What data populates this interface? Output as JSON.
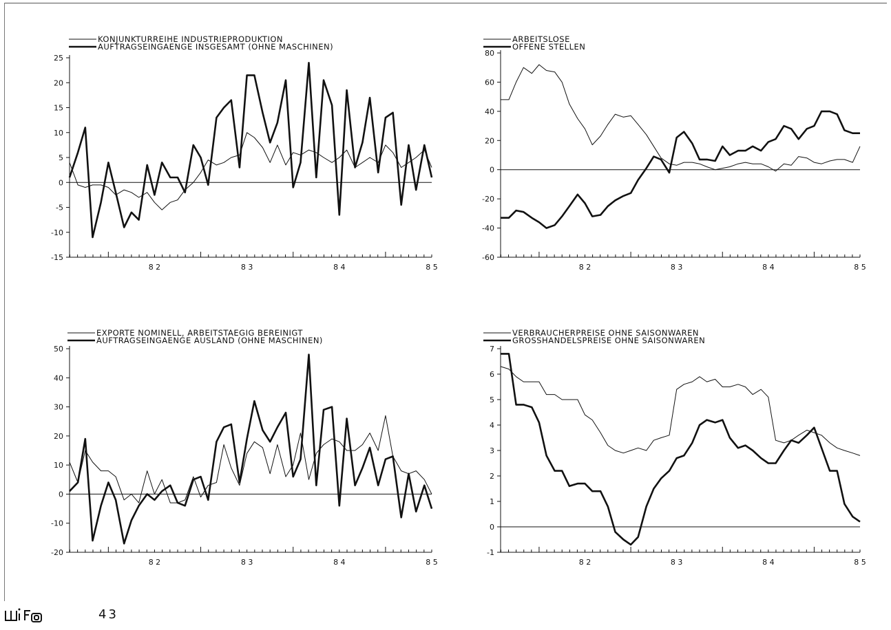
{
  "page": {
    "number": "43",
    "logo_text": "wifo"
  },
  "chart_data": [
    {
      "type": "line",
      "id": "c1",
      "title": "",
      "xlabel": "",
      "ylabel": "",
      "ylim": [
        -15,
        25
      ],
      "yticks": [
        25,
        20,
        15,
        10,
        5,
        0,
        -5,
        -10,
        -15
      ],
      "ytick_labels": [
        "25",
        "20",
        "15",
        "10",
        "5",
        "0",
        "-5",
        "-10",
        "-15"
      ],
      "xlim": [
        1981.58,
        1985.5
      ],
      "xtick_labels": [
        "82",
        "83",
        "84",
        "85"
      ],
      "zero_line": true,
      "legend": "top-left",
      "series": [
        {
          "name": "KONJUNKTURREIHE INDUSTRIEPRODUKTION",
          "weight": "thin",
          "x": [
            1981.58,
            1981.67,
            1981.75,
            1981.83,
            1981.92,
            1982.0,
            1982.08,
            1982.17,
            1982.25,
            1982.33,
            1982.42,
            1982.5,
            1982.58,
            1982.67,
            1982.75,
            1982.83,
            1982.92,
            1983.0,
            1983.08,
            1983.17,
            1983.25,
            1983.33,
            1983.42,
            1983.5,
            1983.58,
            1983.67,
            1983.75,
            1983.83,
            1983.92,
            1984.0,
            1984.08,
            1984.17,
            1984.25,
            1984.33,
            1984.42,
            1984.5,
            1984.58,
            1984.67,
            1984.75,
            1984.83,
            1984.92,
            1985.0,
            1985.08,
            1985.17,
            1985.25,
            1985.33,
            1985.42,
            1985.5
          ],
          "y": [
            4,
            -0.5,
            -1,
            -0.5,
            -0.5,
            -1,
            -2.5,
            -1.5,
            -2,
            -3,
            -2,
            -4,
            -5.5,
            -4,
            -3.5,
            -1.5,
            0,
            2,
            4.5,
            3.5,
            4,
            5,
            5.5,
            10,
            9,
            7,
            4,
            7.5,
            3.5,
            6,
            5.5,
            6.5,
            6,
            5,
            4,
            5,
            6.5,
            3,
            4,
            5,
            4,
            7.5,
            6,
            3,
            4,
            5,
            6.5,
            3
          ]
        },
        {
          "name": "AUFTRAGSEINGAENGE INSGESAMT (OHNE MASCHINEN)",
          "weight": "thick",
          "x": [
            1981.58,
            1981.67,
            1981.75,
            1981.83,
            1981.92,
            1982.0,
            1982.08,
            1982.17,
            1982.25,
            1982.33,
            1982.42,
            1982.5,
            1982.58,
            1982.67,
            1982.75,
            1982.83,
            1982.92,
            1983.0,
            1983.08,
            1983.17,
            1983.25,
            1983.33,
            1983.42,
            1983.5,
            1983.58,
            1983.67,
            1983.75,
            1983.83,
            1983.92,
            1984.0,
            1984.08,
            1984.17,
            1984.25,
            1984.33,
            1984.42,
            1984.5,
            1984.58,
            1984.67,
            1984.75,
            1984.83,
            1984.92,
            1985.0,
            1985.08,
            1985.17,
            1985.25,
            1985.33,
            1985.42,
            1985.5
          ],
          "y": [
            1,
            6,
            11,
            -11,
            -4,
            4,
            -2,
            -9,
            -6,
            -7.5,
            3.5,
            -2.5,
            4,
            1,
            1,
            -2,
            7.5,
            5,
            -0.5,
            13,
            15,
            16.5,
            3,
            21.5,
            21.5,
            14,
            8,
            12,
            20.5,
            -1,
            4,
            24,
            1,
            20.5,
            15.5,
            -6.5,
            18.5,
            3,
            8,
            17,
            2,
            13,
            14,
            -4.5,
            7.5,
            -1.5,
            7.5,
            1
          ]
        }
      ]
    },
    {
      "type": "line",
      "id": "c2",
      "title": "",
      "xlabel": "",
      "ylabel": "",
      "ylim": [
        -60,
        80
      ],
      "yticks": [
        80,
        60,
        40,
        20,
        0,
        -20,
        -40,
        -60
      ],
      "ytick_labels": [
        "80",
        "60",
        "40",
        "20",
        "0",
        "-20",
        "-40",
        "-60"
      ],
      "xlim": [
        1981.58,
        1985.5
      ],
      "xtick_labels": [
        "82",
        "83",
        "84",
        "85"
      ],
      "zero_line": true,
      "legend": "top-left",
      "series": [
        {
          "name": "ARBEITSLOSE",
          "weight": "thin",
          "x": [
            1981.58,
            1981.67,
            1981.75,
            1981.83,
            1981.92,
            1982.0,
            1982.08,
            1982.17,
            1982.25,
            1982.33,
            1982.42,
            1982.5,
            1982.58,
            1982.67,
            1982.75,
            1982.83,
            1982.92,
            1983.0,
            1983.08,
            1983.17,
            1983.25,
            1983.33,
            1983.42,
            1983.5,
            1983.58,
            1983.67,
            1983.75,
            1983.83,
            1983.92,
            1984.0,
            1984.08,
            1984.17,
            1984.25,
            1984.33,
            1984.42,
            1984.5,
            1984.58,
            1984.67,
            1984.75,
            1984.83,
            1984.92,
            1985.0,
            1985.08,
            1985.17,
            1985.25,
            1985.33,
            1985.42,
            1985.5
          ],
          "y": [
            48,
            48,
            60,
            70,
            66,
            72,
            68,
            67,
            60,
            45,
            35,
            28,
            17,
            23,
            31,
            38,
            36,
            37,
            31,
            24,
            16,
            8,
            4,
            3,
            5,
            5,
            4,
            2,
            0,
            1,
            2,
            4,
            5,
            4,
            4,
            2,
            -1,
            4,
            3,
            9,
            8,
            5,
            4,
            6,
            7,
            7,
            5,
            16
          ]
        },
        {
          "name": "OFFENE STELLEN",
          "weight": "thick",
          "x": [
            1981.58,
            1981.67,
            1981.75,
            1981.83,
            1981.92,
            1982.0,
            1982.08,
            1982.17,
            1982.25,
            1982.33,
            1982.42,
            1982.5,
            1982.58,
            1982.67,
            1982.75,
            1982.83,
            1982.92,
            1983.0,
            1983.08,
            1983.17,
            1983.25,
            1983.33,
            1983.42,
            1983.5,
            1983.58,
            1983.67,
            1983.75,
            1983.83,
            1983.92,
            1984.0,
            1984.08,
            1984.17,
            1984.25,
            1984.33,
            1984.42,
            1984.5,
            1984.58,
            1984.67,
            1984.75,
            1984.83,
            1984.92,
            1985.0,
            1985.08,
            1985.17,
            1985.25,
            1985.33,
            1985.42,
            1985.5
          ],
          "y": [
            -33,
            -33,
            -28,
            -29,
            -33,
            -36,
            -40,
            -38,
            -32,
            -25,
            -17,
            -23,
            -32,
            -31,
            -25,
            -21,
            -18,
            -16,
            -7,
            1,
            9,
            7,
            -2,
            22,
            26,
            18,
            7,
            7,
            6,
            16,
            10,
            13,
            13,
            16,
            13,
            19,
            21,
            30,
            28,
            21,
            28,
            30,
            40,
            40,
            38,
            27,
            25,
            25
          ]
        }
      ]
    },
    {
      "type": "line",
      "id": "c3",
      "title": "",
      "xlabel": "",
      "ylabel": "",
      "ylim": [
        -20,
        50
      ],
      "yticks": [
        50,
        40,
        30,
        20,
        10,
        0,
        -10,
        -20
      ],
      "ytick_labels": [
        "50",
        "40",
        "30",
        "20",
        "10",
        "0",
        "-10",
        "-20"
      ],
      "xlim": [
        1981.58,
        1985.5
      ],
      "xtick_labels": [
        "82",
        "83",
        "84",
        "85"
      ],
      "zero_line": true,
      "legend": "top-left",
      "series": [
        {
          "name": "EXPORTE NOMINELL, ARBEITSTAEGIG BEREINIGT",
          "weight": "thin",
          "x": [
            1981.58,
            1981.67,
            1981.75,
            1981.83,
            1981.92,
            1982.0,
            1982.08,
            1982.17,
            1982.25,
            1982.33,
            1982.42,
            1982.5,
            1982.58,
            1982.67,
            1982.75,
            1982.83,
            1982.92,
            1983.0,
            1983.08,
            1983.17,
            1983.25,
            1983.33,
            1983.42,
            1983.5,
            1983.58,
            1983.67,
            1983.75,
            1983.83,
            1983.92,
            1984.0,
            1984.08,
            1984.17,
            1984.25,
            1984.33,
            1984.42,
            1984.5,
            1984.58,
            1984.67,
            1984.75,
            1984.83,
            1984.92,
            1985.0,
            1985.08,
            1985.17,
            1985.25,
            1985.33,
            1985.42,
            1985.5
          ],
          "y": [
            11,
            4,
            15,
            11,
            8,
            8,
            6,
            -2,
            0,
            -3,
            8,
            0,
            5,
            -3,
            -3,
            -2,
            6,
            -1,
            3,
            4,
            17,
            9,
            3,
            14,
            18,
            16,
            7,
            17,
            6,
            10,
            21,
            5,
            14,
            17,
            19,
            18,
            15,
            15,
            17,
            21,
            15,
            27,
            13,
            8,
            7,
            8,
            5,
            0
          ]
        },
        {
          "name": "AUFTRAGSEINGAENGE AUSLAND (OHNE MASCHINEN)",
          "weight": "thick",
          "x": [
            1981.58,
            1981.67,
            1981.75,
            1981.83,
            1981.92,
            1982.0,
            1982.08,
            1982.17,
            1982.25,
            1982.33,
            1982.42,
            1982.5,
            1982.58,
            1982.67,
            1982.75,
            1982.83,
            1982.92,
            1983.0,
            1983.08,
            1983.17,
            1983.25,
            1983.33,
            1983.42,
            1983.5,
            1983.58,
            1983.67,
            1983.75,
            1983.83,
            1983.92,
            1984.0,
            1984.08,
            1984.17,
            1984.25,
            1984.33,
            1984.42,
            1984.5,
            1984.58,
            1984.67,
            1984.75,
            1984.83,
            1984.92,
            1985.0,
            1985.08,
            1985.17,
            1985.25,
            1985.33,
            1985.42,
            1985.5
          ],
          "y": [
            1,
            4,
            19,
            -16,
            -4,
            4,
            -2,
            -17,
            -9,
            -4,
            0,
            -2,
            1,
            3,
            -3,
            -4,
            5,
            6,
            -2,
            18,
            23,
            24,
            4,
            19,
            32,
            22,
            18,
            23,
            28,
            6,
            12,
            48,
            3,
            29,
            30,
            -4,
            26,
            3,
            9,
            16,
            3,
            12,
            13,
            -8,
            7,
            -6,
            3,
            -5
          ]
        }
      ]
    },
    {
      "type": "line",
      "id": "c4",
      "title": "",
      "xlabel": "",
      "ylabel": "",
      "ylim": [
        -1,
        7
      ],
      "yticks": [
        7,
        6,
        5,
        4,
        3,
        2,
        1,
        0,
        -1
      ],
      "ytick_labels": [
        "7",
        "6",
        "5",
        "4",
        "3",
        "2",
        "1",
        "0",
        "-1"
      ],
      "xlim": [
        1981.58,
        1985.5
      ],
      "xtick_labels": [
        "82",
        "83",
        "84",
        "85"
      ],
      "zero_line": true,
      "legend": "top-left",
      "series": [
        {
          "name": "VERBRAUCHERPREISE OHNE SAISONWAREN",
          "weight": "thin",
          "x": [
            1981.58,
            1981.67,
            1981.75,
            1981.83,
            1981.92,
            1982.0,
            1982.08,
            1982.17,
            1982.25,
            1982.33,
            1982.42,
            1982.5,
            1982.58,
            1982.67,
            1982.75,
            1982.83,
            1982.92,
            1983.0,
            1983.08,
            1983.17,
            1983.25,
            1983.33,
            1983.42,
            1983.5,
            1983.58,
            1983.67,
            1983.75,
            1983.83,
            1983.92,
            1984.0,
            1984.08,
            1984.17,
            1984.25,
            1984.33,
            1984.42,
            1984.5,
            1984.58,
            1984.67,
            1984.75,
            1984.83,
            1984.92,
            1985.0,
            1985.08,
            1985.17,
            1985.25,
            1985.33,
            1985.42,
            1985.5
          ],
          "y": [
            6.3,
            6.2,
            5.9,
            5.7,
            5.7,
            5.7,
            5.2,
            5.2,
            5.0,
            5.0,
            5.0,
            4.4,
            4.2,
            3.7,
            3.2,
            3.0,
            2.9,
            3.0,
            3.1,
            3.0,
            3.4,
            3.5,
            3.6,
            5.4,
            5.6,
            5.7,
            5.9,
            5.7,
            5.8,
            5.5,
            5.5,
            5.6,
            5.5,
            5.2,
            5.4,
            5.1,
            3.4,
            3.3,
            3.4,
            3.6,
            3.8,
            3.7,
            3.6,
            3.3,
            3.1,
            3.0,
            2.9,
            2.8
          ]
        },
        {
          "name": "GROSSHANDELSPREISE OHNE SAISONWAREN",
          "weight": "thick",
          "x": [
            1981.58,
            1981.67,
            1981.75,
            1981.83,
            1981.92,
            1982.0,
            1982.08,
            1982.17,
            1982.25,
            1982.33,
            1982.42,
            1982.5,
            1982.58,
            1982.67,
            1982.75,
            1982.83,
            1982.92,
            1983.0,
            1983.08,
            1983.17,
            1983.25,
            1983.33,
            1983.42,
            1983.5,
            1983.58,
            1983.67,
            1983.75,
            1983.83,
            1983.92,
            1984.0,
            1984.08,
            1984.17,
            1984.25,
            1984.33,
            1984.42,
            1984.5,
            1984.58,
            1984.67,
            1984.75,
            1984.83,
            1984.92,
            1985.0,
            1985.08,
            1985.17,
            1985.25,
            1985.33,
            1985.42,
            1985.5
          ],
          "y": [
            6.8,
            6.8,
            4.8,
            4.8,
            4.7,
            4.1,
            2.8,
            2.2,
            2.2,
            1.6,
            1.7,
            1.7,
            1.4,
            1.4,
            0.8,
            -0.2,
            -0.5,
            -0.7,
            -0.4,
            0.8,
            1.5,
            1.9,
            2.2,
            2.7,
            2.8,
            3.3,
            4.0,
            4.2,
            4.1,
            4.2,
            3.5,
            3.1,
            3.2,
            3.0,
            2.7,
            2.5,
            2.5,
            3.0,
            3.4,
            3.3,
            3.6,
            3.9,
            3.1,
            2.2,
            2.2,
            0.9,
            0.4,
            0.2
          ]
        }
      ]
    }
  ]
}
